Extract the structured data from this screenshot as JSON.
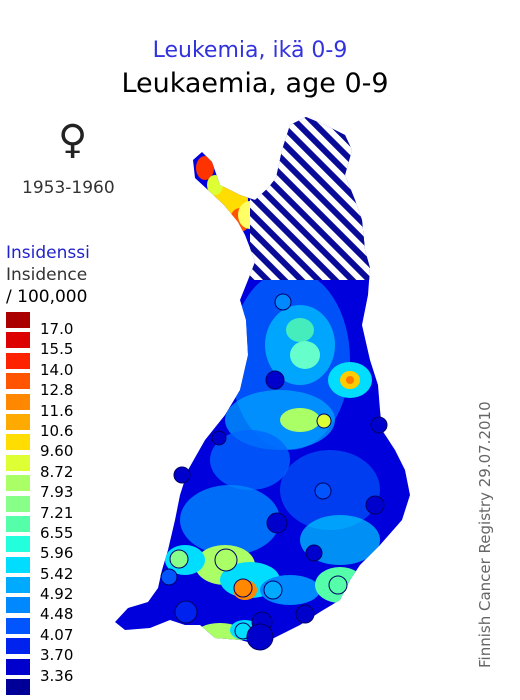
{
  "title_fi": "Leukemia, ikä 0-9",
  "title_en": "Leukaemia, age 0-9",
  "sex_symbol": "♀",
  "sex_icon": "female-symbol-icon",
  "period": "1953-1960",
  "legend": {
    "heading_fi": "Insidenssi",
    "heading_en": "Insidence",
    "unit": "/ 100,000",
    "items": [
      {
        "label": "17.0",
        "color": "#aa0000"
      },
      {
        "label": "15.5",
        "color": "#dd0000"
      },
      {
        "label": "14.0",
        "color": "#ff2200"
      },
      {
        "label": "12.8",
        "color": "#ff5500"
      },
      {
        "label": "11.6",
        "color": "#ff8800"
      },
      {
        "label": "10.6",
        "color": "#ffaa00"
      },
      {
        "label": "9.60",
        "color": "#ffdd00"
      },
      {
        "label": "8.72",
        "color": "#ddff33"
      },
      {
        "label": "7.93",
        "color": "#aaff66"
      },
      {
        "label": "7.21",
        "color": "#88ff88"
      },
      {
        "label": "6.55",
        "color": "#55ffaa"
      },
      {
        "label": "5.96",
        "color": "#22ffdd"
      },
      {
        "label": "5.42",
        "color": "#00ddff"
      },
      {
        "label": "4.92",
        "color": "#00aaff"
      },
      {
        "label": "4.48",
        "color": "#0088ff"
      },
      {
        "label": "4.07",
        "color": "#0055ff"
      },
      {
        "label": "3.70",
        "color": "#0022ee"
      },
      {
        "label": "3.36",
        "color": "#0000cc"
      },
      {
        "label": "",
        "color": "#000099"
      }
    ]
  },
  "credit": "Finnish Cancer Registry 29.07.2010"
}
